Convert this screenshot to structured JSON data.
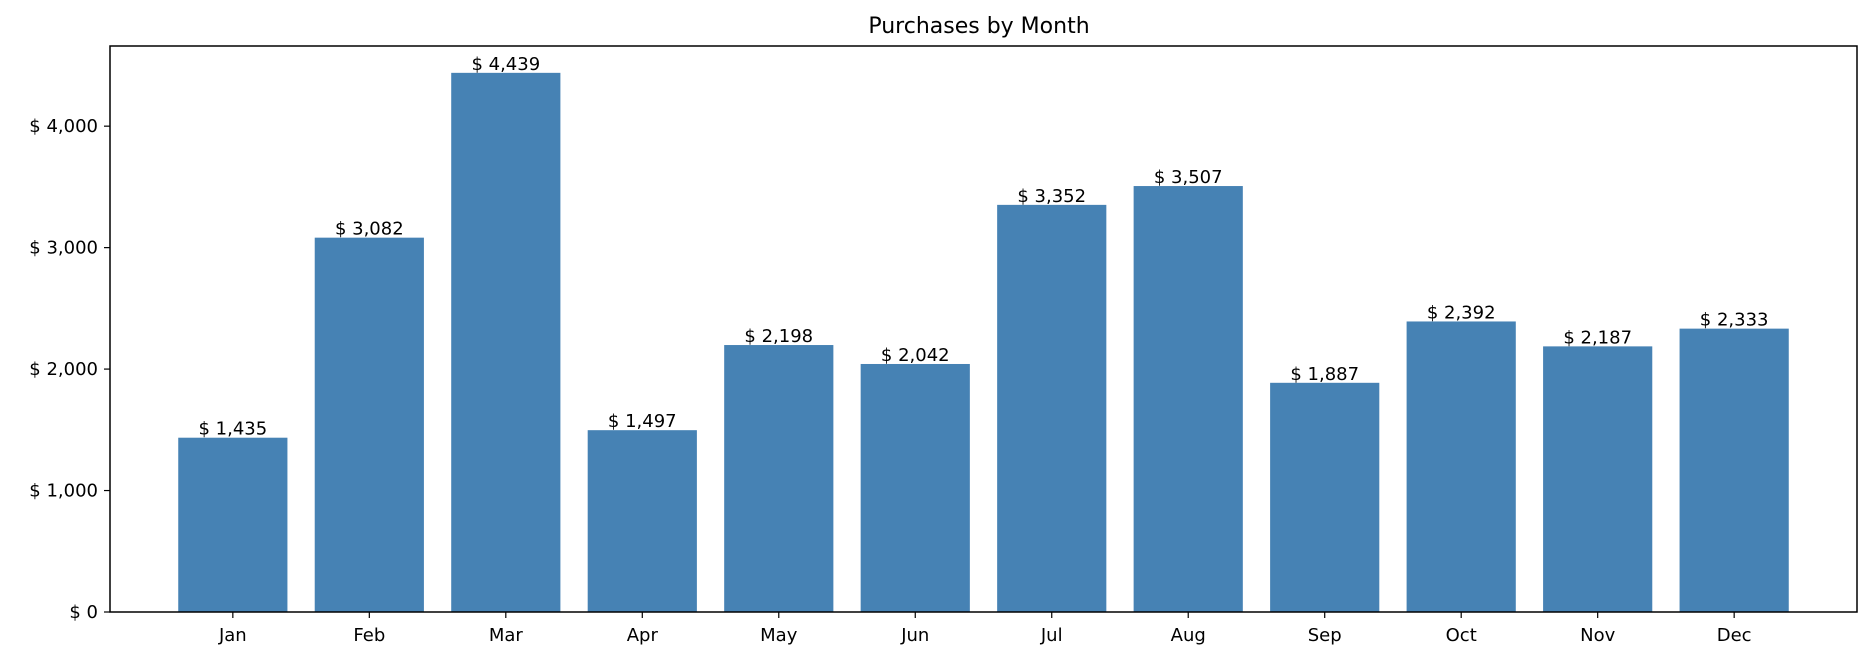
{
  "chart_data": {
    "type": "bar",
    "title": "Purchases by Month",
    "xlabel": "",
    "ylabel": "",
    "categories": [
      "Jan",
      "Feb",
      "Mar",
      "Apr",
      "May",
      "Jun",
      "Jul",
      "Aug",
      "Sep",
      "Oct",
      "Nov",
      "Dec"
    ],
    "values": [
      1435,
      3082,
      4439,
      1497,
      2198,
      2042,
      3352,
      3507,
      1887,
      2392,
      2187,
      2333
    ],
    "data_labels": [
      "$ 1,435",
      "$ 3,082",
      "$ 4,439",
      "$ 1,497",
      "$ 2,198",
      "$ 2,042",
      "$ 3,352",
      "$ 3,507",
      "$ 1,887",
      "$ 2,392",
      "$ 2,187",
      "$ 2,333"
    ],
    "yticks": [
      0,
      1000,
      2000,
      3000,
      4000
    ],
    "ytick_labels": [
      "$ 0",
      "$ 1,000",
      "$ 2,000",
      "$ 3,000",
      "$ 4,000"
    ],
    "ylim": [
      0,
      4660
    ],
    "grid": false,
    "legend": "none",
    "bar_color": "#4682b4"
  }
}
